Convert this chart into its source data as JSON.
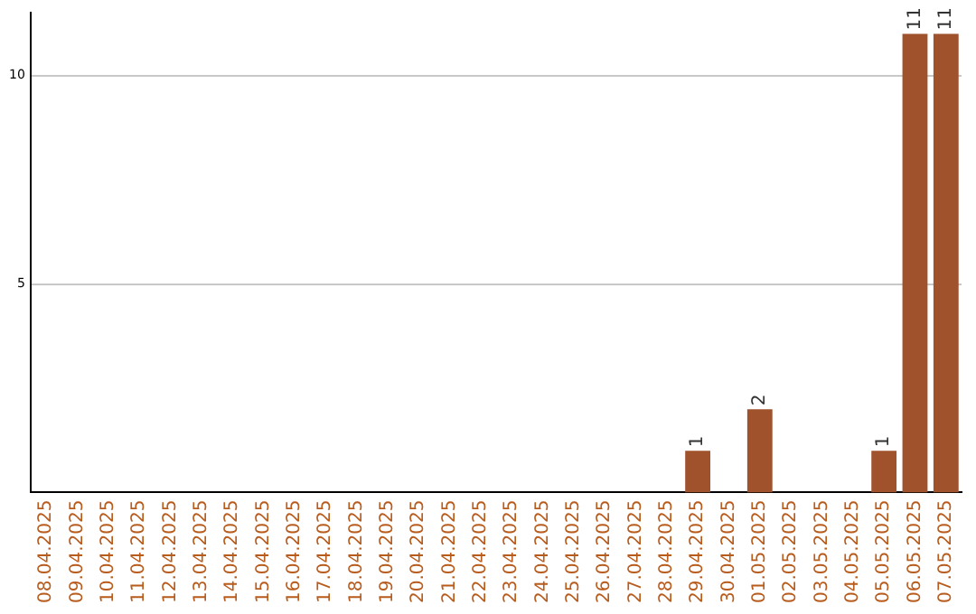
{
  "chart_data": {
    "type": "bar",
    "categories": [
      "08.04.2025",
      "09.04.2025",
      "10.04.2025",
      "11.04.2025",
      "12.04.2025",
      "13.04.2025",
      "14.04.2025",
      "15.04.2025",
      "16.04.2025",
      "17.04.2025",
      "18.04.2025",
      "19.04.2025",
      "20.04.2025",
      "21.04.2025",
      "22.04.2025",
      "23.04.2025",
      "24.04.2025",
      "25.04.2025",
      "26.04.2025",
      "27.04.2025",
      "28.04.2025",
      "29.04.2025",
      "30.04.2025",
      "01.05.2025",
      "02.05.2025",
      "03.05.2025",
      "04.05.2025",
      "05.05.2025",
      "06.05.2025",
      "07.05.2025"
    ],
    "values": [
      0,
      0,
      0,
      0,
      0,
      0,
      0,
      0,
      0,
      0,
      0,
      0,
      0,
      0,
      0,
      0,
      0,
      0,
      0,
      0,
      0,
      1,
      0,
      2,
      0,
      0,
      0,
      1,
      11,
      11
    ],
    "value_labels": [
      null,
      null,
      null,
      null,
      null,
      null,
      null,
      null,
      null,
      null,
      null,
      null,
      null,
      null,
      null,
      null,
      null,
      null,
      null,
      null,
      null,
      "1",
      null,
      "2",
      null,
      null,
      null,
      "1",
      "11",
      "11"
    ],
    "color": "#a0522d",
    "ylim": [
      0,
      11.5
    ],
    "yticks": [
      5,
      10
    ],
    "grid": "y",
    "legend": false
  }
}
